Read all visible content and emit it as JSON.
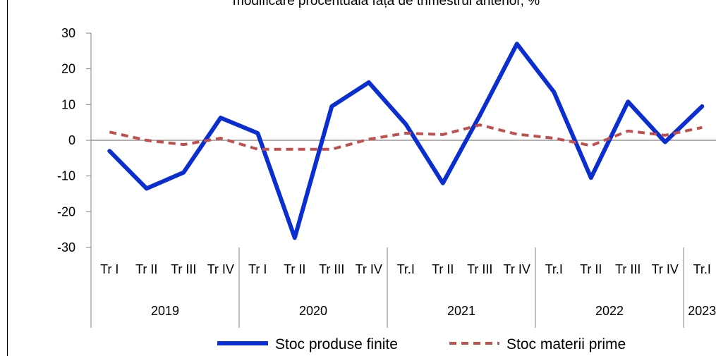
{
  "chart_data": {
    "type": "line",
    "title": "modificare procentuală față de trimestrul anterior, %",
    "quarters": [
      "Tr I",
      "Tr II",
      "Tr III",
      "Tr IV",
      "Tr I",
      "Tr II",
      "Tr III",
      "Tr IV",
      "Tr.I",
      "Tr II",
      "Tr III",
      "Tr IV",
      "Tr.I",
      "Tr II",
      "Tr III",
      "Tr IV",
      "Tr.I"
    ],
    "years": [
      {
        "label": "2019",
        "span": 4
      },
      {
        "label": "2020",
        "span": 4
      },
      {
        "label": "2021",
        "span": 4
      },
      {
        "label": "2022",
        "span": 4
      },
      {
        "label": "2023",
        "span": 1
      }
    ],
    "ylim": [
      -30,
      30
    ],
    "yticks": [
      30,
      20,
      10,
      0,
      -10,
      -20,
      -30
    ],
    "series": [
      {
        "name": "Stoc produse finite",
        "color": "#0a2ecf",
        "style": "solid",
        "values": [
          -3,
          -13.5,
          -9,
          6.3,
          2,
          -27.3,
          9.5,
          16.2,
          4.5,
          -12,
          7,
          27,
          13.5,
          -10.5,
          10.8,
          -0.5,
          9.5
        ]
      },
      {
        "name": "Stoc materii prime",
        "color": "#c0504d",
        "style": "dashed",
        "values": [
          2.3,
          0,
          -1.2,
          0.6,
          -2.5,
          -2.5,
          -2.5,
          0.3,
          2,
          1.6,
          4.3,
          1.7,
          0.6,
          -1.5,
          2.6,
          1.4,
          3.6
        ]
      }
    ],
    "legend_position": "bottom"
  }
}
